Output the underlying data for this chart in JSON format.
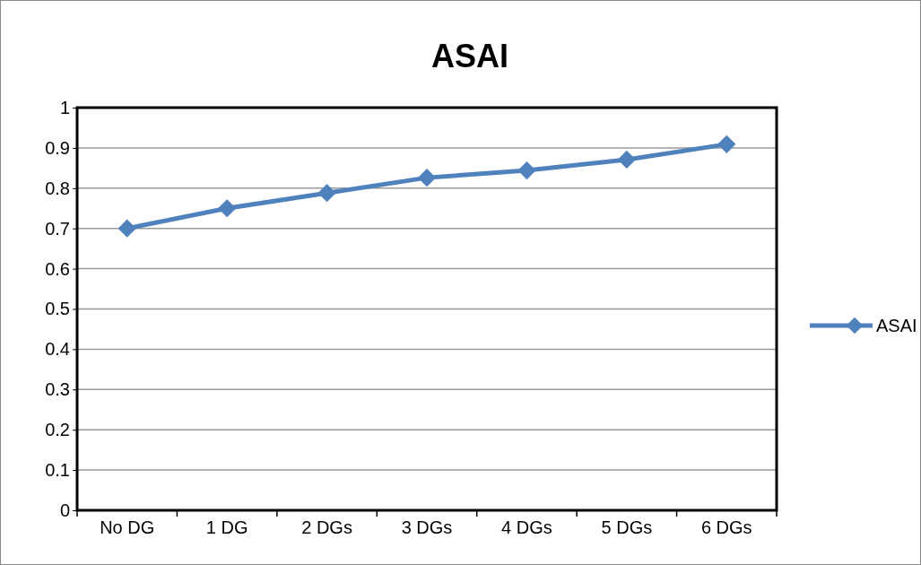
{
  "chart_data": {
    "type": "line",
    "title": "ASAI",
    "categories": [
      "No DG",
      "1 DG",
      "2 DGs",
      "3 DGs",
      "4 DGs",
      "5 DGs",
      "6 DGs"
    ],
    "series": [
      {
        "name": "ASAI",
        "color": "#4f81bd",
        "values": [
          0.7,
          0.75,
          0.788,
          0.826,
          0.844,
          0.871,
          0.909
        ]
      }
    ],
    "ylim": [
      0,
      1
    ],
    "yticks": [
      0,
      0.1,
      0.2,
      0.3,
      0.4,
      0.5,
      0.6,
      0.7,
      0.8,
      0.9,
      1
    ],
    "grid": "y",
    "legend": "right",
    "marker": "diamond",
    "line_style": "solid"
  }
}
